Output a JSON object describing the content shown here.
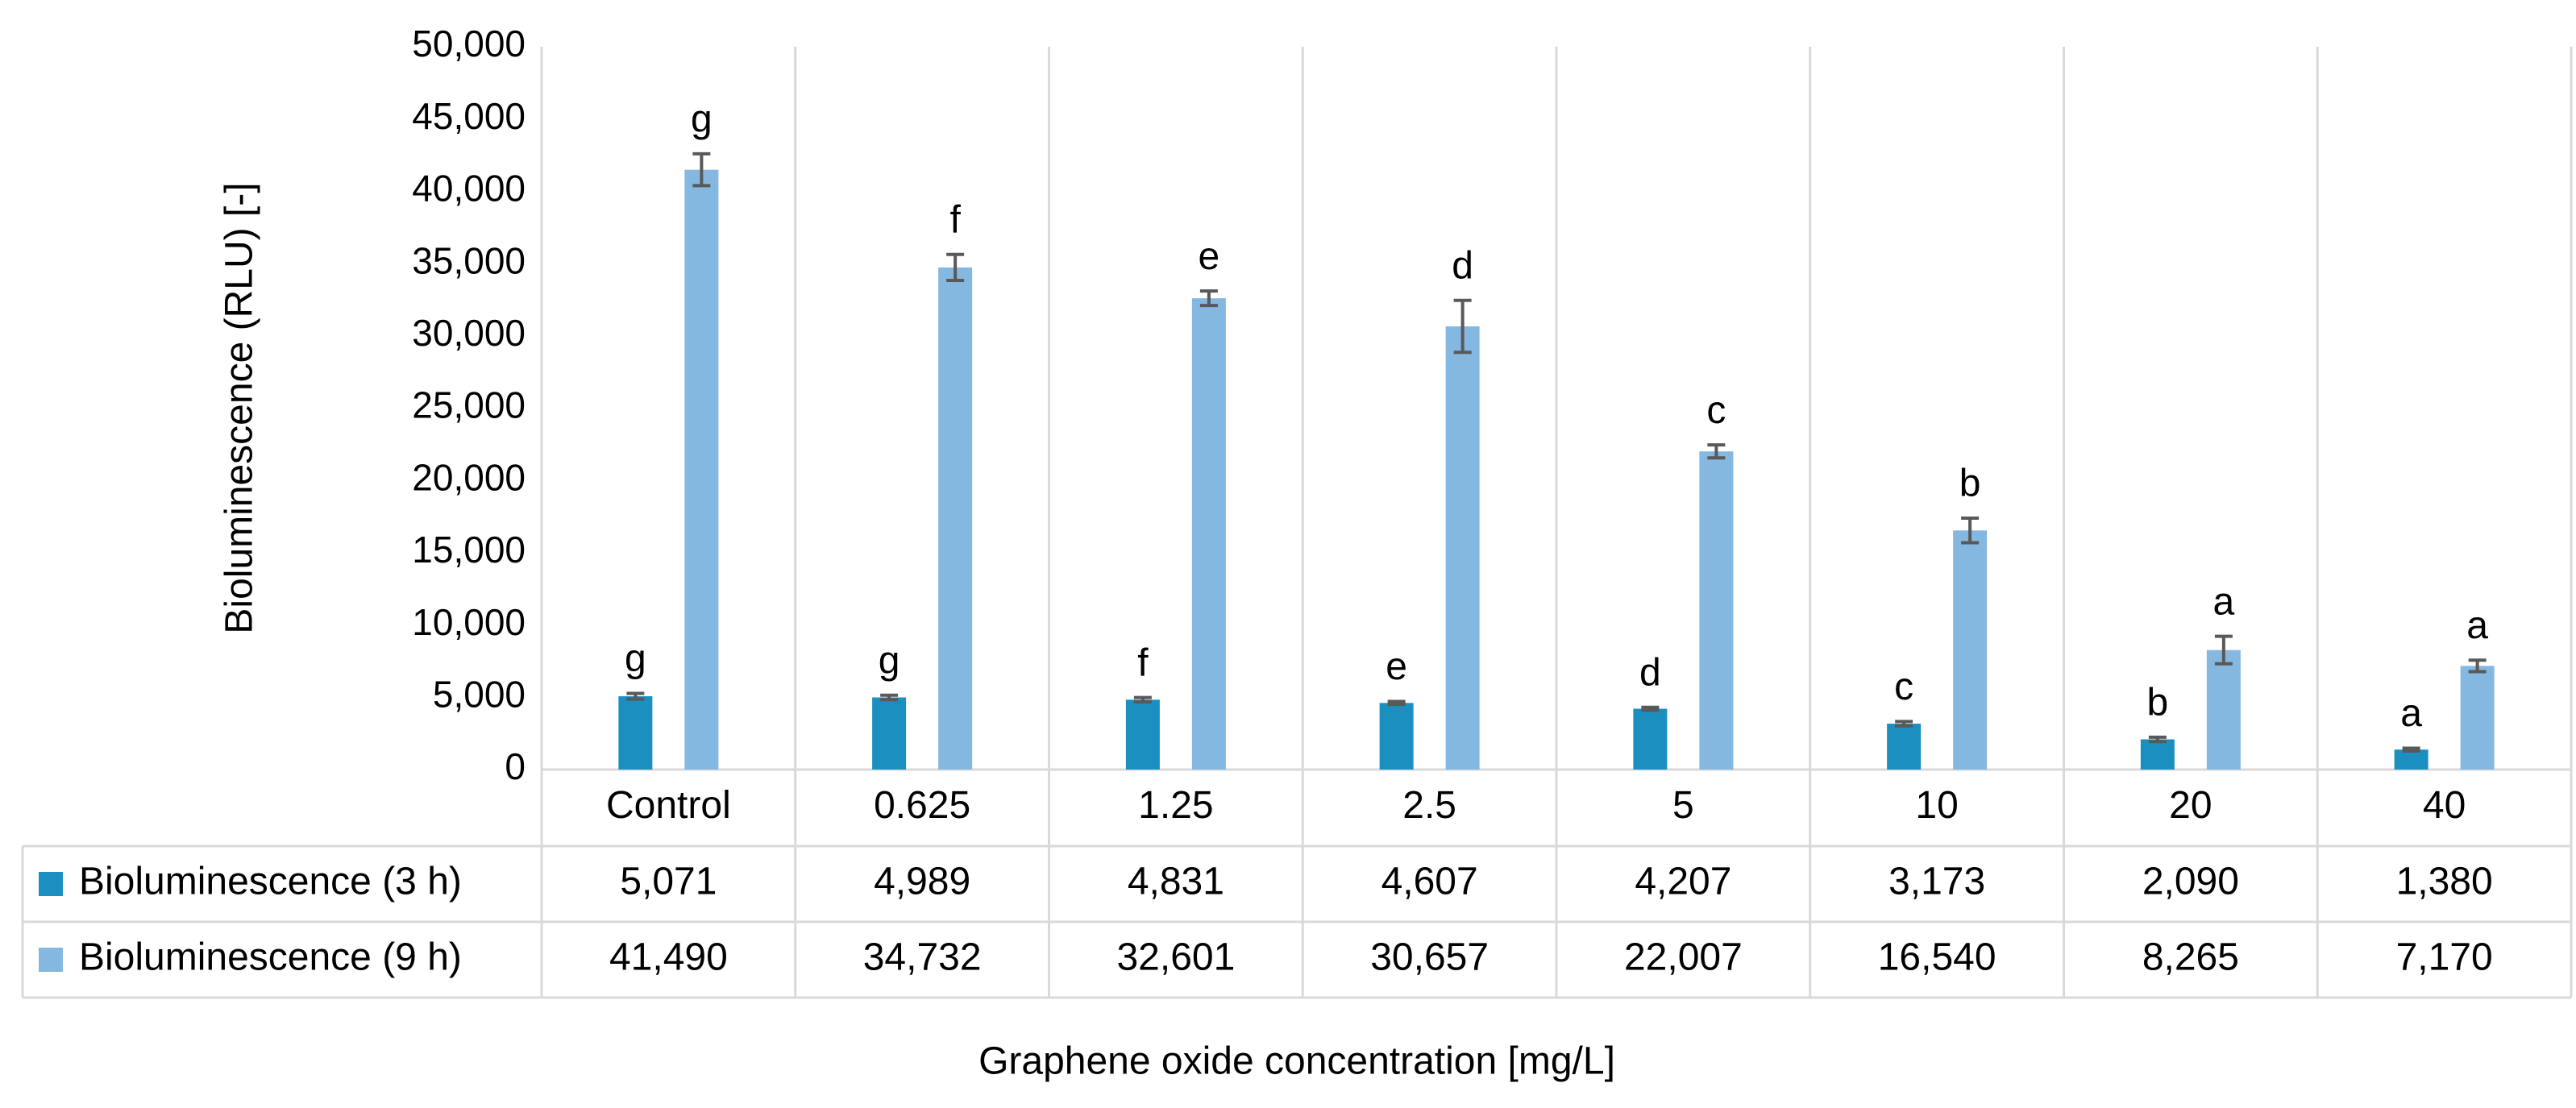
{
  "chart_data": {
    "type": "bar",
    "title": "",
    "xlabel": "Graphene oxide concentration [mg/L]",
    "ylabel": "Bioluminescence (RLU) [-]",
    "ylim": [
      0,
      50000
    ],
    "yticks": [
      0,
      5000,
      10000,
      15000,
      20000,
      25000,
      30000,
      35000,
      40000,
      45000,
      50000
    ],
    "ytick_labels": [
      "0",
      "5,000",
      "10,000",
      "15,000",
      "20,000",
      "25,000",
      "30,000",
      "35,000",
      "40,000",
      "45,000",
      "50,000"
    ],
    "grid": "vertical category separators",
    "legend": "data table",
    "categories": [
      "Control",
      "0.625",
      "1.25",
      "2.5",
      "5",
      "10",
      "20",
      "40"
    ],
    "series": [
      {
        "name": "Bioluminescence (3 h)",
        "color": "#1a8fc0",
        "values": [
          5071,
          4989,
          4831,
          4607,
          4207,
          3173,
          2090,
          1380
        ],
        "value_labels": [
          "5,071",
          "4,989",
          "4,831",
          "4,607",
          "4,207",
          "3,173",
          "2,090",
          "1,380"
        ],
        "errors": [
          200,
          150,
          150,
          100,
          100,
          150,
          150,
          100
        ],
        "significance": [
          "g",
          "g",
          "f",
          "e",
          "d",
          "c",
          "b",
          "a"
        ]
      },
      {
        "name": "Bioluminescence (9 h)",
        "color": "#85b8e0",
        "values": [
          41490,
          34732,
          32601,
          30657,
          22007,
          16540,
          8265,
          7170
        ],
        "value_labels": [
          "41,490",
          "34,732",
          "32,601",
          "30,657",
          "22,007",
          "16,540",
          "8,265",
          "7,170"
        ],
        "errors": [
          1100,
          900,
          500,
          1800,
          450,
          850,
          950,
          400
        ],
        "significance": [
          "g",
          "f",
          "e",
          "d",
          "c",
          "b",
          "a",
          "a"
        ]
      }
    ]
  }
}
